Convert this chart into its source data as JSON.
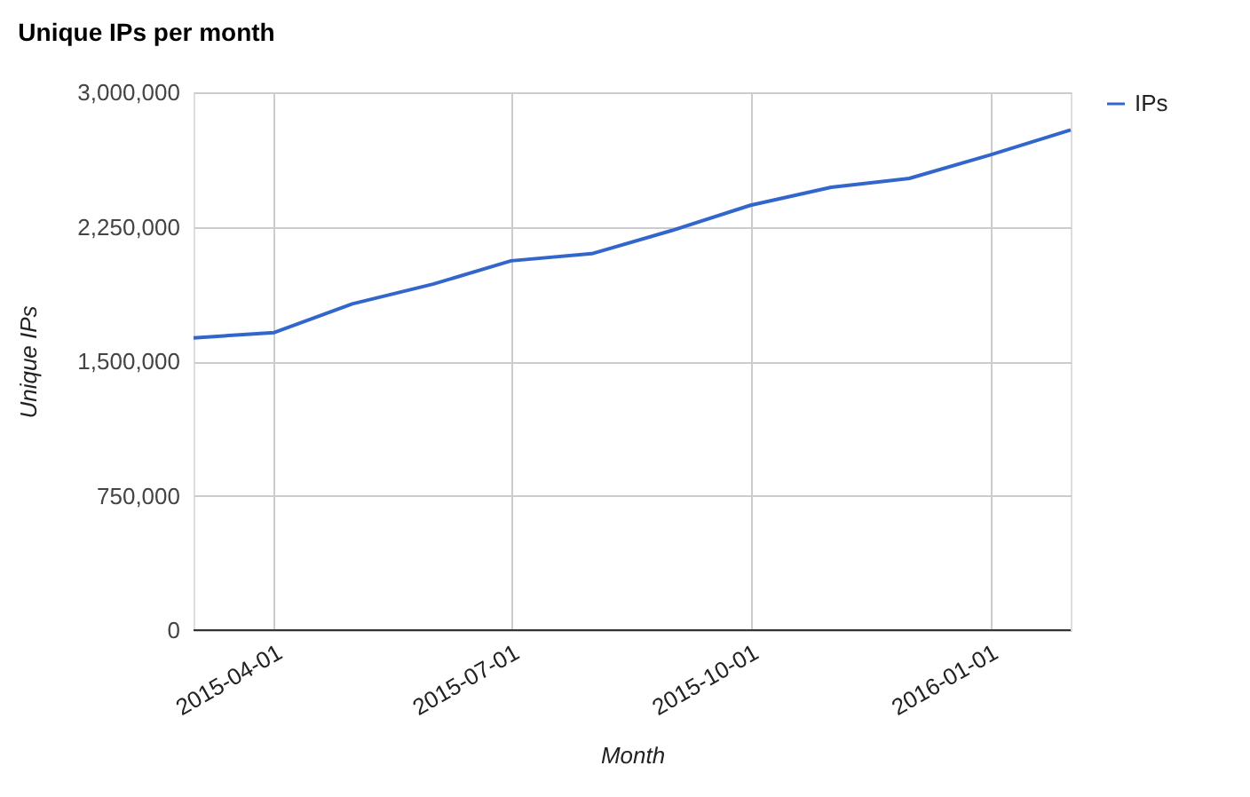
{
  "chart_data": {
    "type": "line",
    "title": "Unique IPs per month",
    "xlabel": "Month",
    "ylabel": "Unique IPs",
    "x": [
      "2015-03-01",
      "2015-04-01",
      "2015-05-01",
      "2015-06-01",
      "2015-07-01",
      "2015-08-01",
      "2015-09-01",
      "2015-10-01",
      "2015-11-01",
      "2015-12-01",
      "2016-01-01",
      "2016-02-01"
    ],
    "series": [
      {
        "name": "IPs",
        "color": "#3366cc",
        "values": [
          1630000,
          1660000,
          1820000,
          1930000,
          2060000,
          2100000,
          2230000,
          2370000,
          2470000,
          2520000,
          2650000,
          2790000
        ]
      }
    ],
    "xlim": [
      "2015-03-01",
      "2016-02-01"
    ],
    "xticks": [
      "2015-04-01",
      "2015-07-01",
      "2015-10-01",
      "2016-01-01"
    ],
    "ylim": [
      0,
      3000000
    ],
    "yticks": [
      0,
      {
        "value": 750000,
        "label": "750,000"
      },
      {
        "value": 1500000,
        "label": "1,500,000"
      },
      {
        "value": 2250000,
        "label": "2,250,000"
      },
      {
        "value": 3000000,
        "label": "3,000,000"
      }
    ],
    "grid": true,
    "legend": "top right",
    "marker": "none",
    "line_style": "solid"
  }
}
